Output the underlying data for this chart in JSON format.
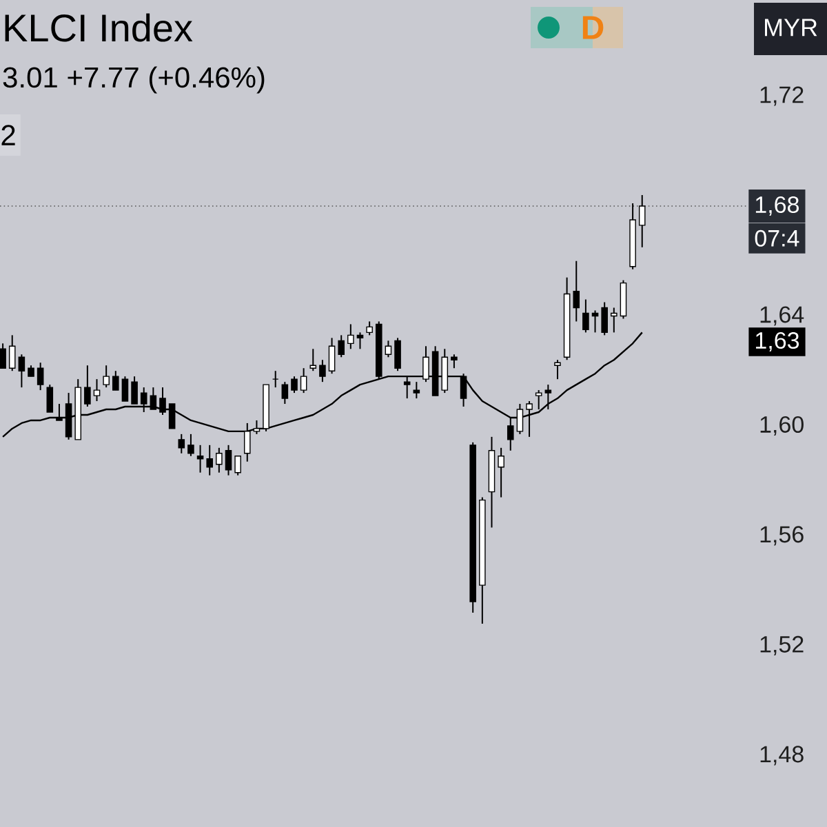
{
  "chart_data": {
    "type": "candlestick",
    "title": "KLCI Index",
    "subtitle": "3.01  +7.77 (+0.46%)",
    "categories": [
      null,
      null,
      null,
      null,
      null,
      null,
      null,
      null,
      null,
      null,
      null,
      null,
      null,
      null,
      null,
      null,
      null,
      null,
      null,
      null,
      null,
      null,
      null,
      null,
      null,
      null,
      null,
      null,
      null,
      null,
      null,
      null,
      null,
      null,
      null,
      null,
      null,
      null,
      null,
      null,
      null,
      null,
      null,
      null,
      null,
      null,
      null,
      null,
      null,
      null,
      null,
      null,
      null,
      null,
      null,
      null,
      null,
      null,
      null,
      null,
      null,
      null,
      null,
      null,
      null,
      null,
      null,
      null,
      null
    ],
    "ohlc": [
      [
        1.628,
        1.63,
        1.621,
        1.621
      ],
      [
        1.621,
        1.633,
        1.62,
        1.629
      ],
      [
        1.625,
        1.626,
        1.614,
        1.62
      ],
      [
        1.621,
        1.622,
        1.618,
        1.618
      ],
      [
        1.621,
        1.623,
        1.613,
        1.615
      ],
      [
        1.614,
        1.615,
        1.605,
        1.605
      ],
      [
        1.603,
        1.608,
        1.602,
        1.602
      ],
      [
        1.608,
        1.612,
        1.595,
        1.596
      ],
      [
        1.595,
        1.617,
        1.595,
        1.614
      ],
      [
        1.614,
        1.622,
        1.607,
        1.608
      ],
      [
        1.611,
        1.617,
        1.609,
        1.613
      ],
      [
        1.615,
        1.622,
        1.614,
        1.618
      ],
      [
        1.618,
        1.62,
        1.613,
        1.613
      ],
      [
        1.617,
        1.618,
        1.609,
        1.609
      ],
      [
        1.616,
        1.618,
        1.608,
        1.608
      ],
      [
        1.612,
        1.614,
        1.605,
        1.608
      ],
      [
        1.611,
        1.614,
        1.606,
        1.606
      ],
      [
        1.61,
        1.614,
        1.604,
        1.605
      ],
      [
        1.608,
        1.608,
        1.599,
        1.599
      ],
      [
        1.595,
        1.597,
        1.59,
        1.592
      ],
      [
        1.593,
        1.597,
        1.589,
        1.59
      ],
      [
        1.589,
        1.593,
        1.583,
        1.588
      ],
      [
        1.588,
        1.593,
        1.582,
        1.585
      ],
      [
        1.586,
        1.592,
        1.583,
        1.59
      ],
      [
        1.591,
        1.593,
        1.582,
        1.584
      ],
      [
        1.583,
        1.589,
        1.582,
        1.589
      ],
      [
        1.59,
        1.601,
        1.587,
        1.598
      ],
      [
        1.598,
        1.602,
        1.597,
        1.599
      ],
      [
        1.599,
        1.615,
        1.598,
        1.615
      ],
      [
        1.617,
        1.62,
        1.614,
        1.617
      ],
      [
        1.615,
        1.616,
        1.608,
        1.61
      ],
      [
        1.617,
        1.618,
        1.612,
        1.613
      ],
      [
        1.613,
        1.621,
        1.612,
        1.618
      ],
      [
        1.621,
        1.628,
        1.62,
        1.622
      ],
      [
        1.622,
        1.624,
        1.616,
        1.618
      ],
      [
        1.62,
        1.632,
        1.619,
        1.629
      ],
      [
        1.631,
        1.633,
        1.625,
        1.626
      ],
      [
        1.63,
        1.637,
        1.628,
        1.633
      ],
      [
        1.633,
        1.634,
        1.628,
        1.632
      ],
      [
        1.634,
        1.638,
        1.633,
        1.636
      ],
      [
        1.637,
        1.638,
        1.617,
        1.618
      ],
      [
        1.626,
        1.631,
        1.625,
        1.629
      ],
      [
        1.631,
        1.632,
        1.62,
        1.621
      ],
      [
        1.616,
        1.618,
        1.61,
        1.615
      ],
      [
        1.613,
        1.616,
        1.61,
        1.612
      ],
      [
        1.617,
        1.629,
        1.616,
        1.625
      ],
      [
        1.627,
        1.629,
        1.611,
        1.611
      ],
      [
        1.613,
        1.628,
        1.612,
        1.625
      ],
      [
        1.625,
        1.626,
        1.621,
        1.624
      ],
      [
        1.618,
        1.619,
        1.607,
        1.61
      ],
      [
        1.593,
        1.594,
        1.532,
        1.536
      ],
      [
        1.542,
        1.574,
        1.528,
        1.573
      ],
      [
        1.576,
        1.596,
        1.563,
        1.591
      ],
      [
        1.585,
        1.592,
        1.574,
        1.589
      ],
      [
        1.6,
        1.603,
        1.591,
        1.595
      ],
      [
        1.598,
        1.608,
        1.597,
        1.606
      ],
      [
        1.606,
        1.609,
        1.596,
        1.608
      ],
      [
        1.611,
        1.613,
        1.606,
        1.612
      ],
      [
        1.613,
        1.615,
        1.606,
        1.612
      ],
      [
        1.622,
        1.624,
        1.617,
        1.623
      ],
      [
        1.625,
        1.654,
        1.624,
        1.648
      ],
      [
        1.649,
        1.66,
        1.638,
        1.643
      ],
      [
        1.641,
        1.646,
        1.634,
        1.635
      ],
      [
        1.641,
        1.642,
        1.634,
        1.64
      ],
      [
        1.643,
        1.645,
        1.633,
        1.634
      ],
      [
        1.64,
        1.643,
        1.634,
        1.641
      ],
      [
        1.64,
        1.653,
        1.639,
        1.652
      ],
      [
        1.658,
        1.681,
        1.657,
        1.675
      ],
      [
        1.673,
        1.684,
        1.665,
        1.68
      ]
    ],
    "series": [
      {
        "type": "line",
        "color": "#000000",
        "values": [
          1.596,
          1.599,
          1.601,
          1.602,
          1.602,
          1.603,
          1.603,
          1.603,
          1.604,
          1.604,
          1.605,
          1.606,
          1.606,
          1.607,
          1.607,
          1.607,
          1.607,
          1.606,
          1.606,
          1.604,
          1.602,
          1.601,
          1.6,
          1.599,
          1.598,
          1.598,
          1.598,
          1.599,
          1.599,
          1.6,
          1.601,
          1.602,
          1.603,
          1.604,
          1.606,
          1.608,
          1.611,
          1.613,
          1.615,
          1.616,
          1.617,
          1.618,
          1.618,
          1.618,
          1.618,
          1.618,
          1.618,
          1.618,
          1.618,
          1.618,
          1.613,
          1.609,
          1.607,
          1.605,
          1.603,
          1.603,
          1.604,
          1.605,
          1.608,
          1.61,
          1.613,
          1.615,
          1.617,
          1.619,
          1.622,
          1.624,
          1.627,
          1.63,
          1.634
        ]
      }
    ],
    "ylim": [
      1.454,
      1.755
    ],
    "yticks": [
      {
        "value": 1.72,
        "label": "1,72"
      },
      {
        "value": 1.64,
        "label": "1,64"
      },
      {
        "value": 1.6,
        "label": "1,60"
      },
      {
        "value": 1.56,
        "label": "1,56"
      },
      {
        "value": 1.52,
        "label": "1,52"
      },
      {
        "value": 1.48,
        "label": "1,48"
      }
    ],
    "tick_labels": "y",
    "ref_lines": [
      {
        "axis": "y",
        "value": 1.68,
        "label": "1,68",
        "line_style": "dotted",
        "color": "#555555"
      }
    ],
    "annotations": [
      "2",
      "D",
      "MYR",
      "07:4",
      "1,63"
    ]
  }
}
